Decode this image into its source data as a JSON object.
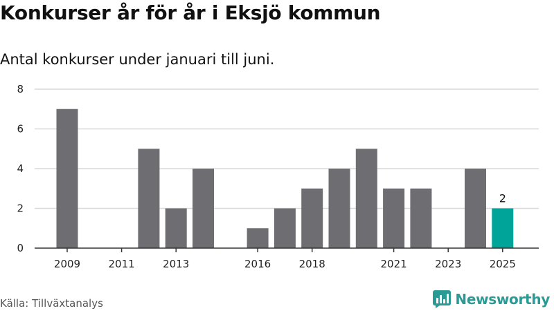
{
  "title": "Konkurser år för år i Eksjö kommun",
  "subtitle": "Antal konkurser under januari till juni.",
  "source": "Källa: Tillväxtanalys",
  "logo_text": "Newsworthy",
  "colors": {
    "bar": "#6e6d72",
    "highlight": "#00a499",
    "grid": "#d9d9d9",
    "axis": "#333333",
    "brand": "#2a9a95"
  },
  "chart_data": {
    "type": "bar",
    "categories": [
      "2009",
      "2010",
      "2011",
      "2012",
      "2013",
      "2014",
      "2015",
      "2016",
      "2017",
      "2018",
      "2019",
      "2020",
      "2021",
      "2022",
      "2023",
      "2024",
      "2025"
    ],
    "values": [
      7,
      0,
      0,
      5,
      2,
      4,
      0,
      1,
      2,
      3,
      4,
      5,
      3,
      3,
      0,
      4,
      2
    ],
    "x_tick_labels": [
      "2009",
      "2011",
      "2013",
      "2016",
      "2018",
      "2021",
      "2023",
      "2025"
    ],
    "y_ticks": [
      0,
      2,
      4,
      6,
      8
    ],
    "ylim": [
      0,
      8
    ],
    "highlight_category": "2025",
    "data_labels": [
      {
        "category": "2025",
        "text": "2"
      }
    ],
    "grid": true,
    "xlabel": "",
    "ylabel": ""
  }
}
